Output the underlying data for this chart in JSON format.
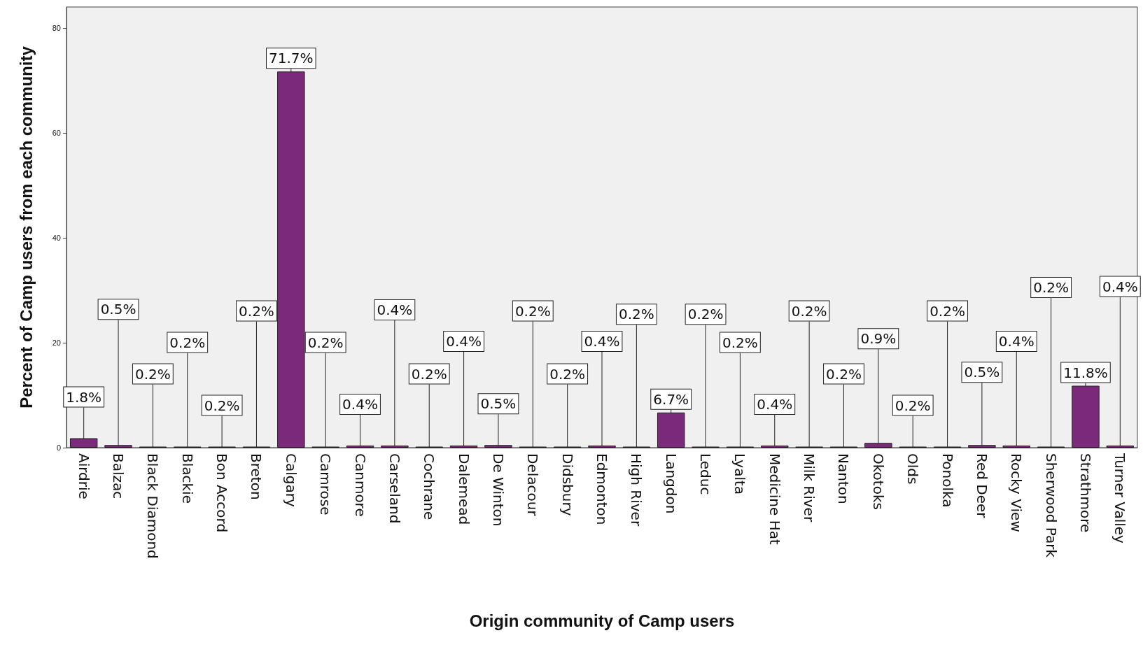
{
  "chart_data": {
    "type": "bar",
    "xlabel": "Origin community of Camp users",
    "ylabel": "Percent of Camp users from each community",
    "categories": [
      "Airdrie",
      "Balzac",
      "Black Diamond",
      "Blackie",
      "Bon Accord",
      "Breton",
      "Calgary",
      "Camrose",
      "Canmore",
      "Carseland",
      "Cochrane",
      "Dalemead",
      "De Winton",
      "Delacour",
      "Didsbury",
      "Edmonton",
      "High River",
      "Langdon",
      "Leduc",
      "Lyalta",
      "Medicine Hat",
      "Milk River",
      "Nanton",
      "Okotoks",
      "Olds",
      "Ponolka",
      "Red Deer",
      "Rocky View",
      "Sherwood Park",
      "Strathmore",
      "Turner Valley"
    ],
    "values": [
      1.8,
      0.5,
      0.2,
      0.2,
      0.2,
      0.2,
      71.7,
      0.2,
      0.4,
      0.4,
      0.2,
      0.4,
      0.5,
      0.2,
      0.2,
      0.4,
      0.2,
      6.7,
      0.2,
      0.2,
      0.4,
      0.2,
      0.2,
      0.9,
      0.2,
      0.2,
      0.5,
      0.4,
      0.2,
      11.8,
      0.4
    ],
    "value_labels": [
      "1.8%",
      "0.5%",
      "0.2%",
      "0.2%",
      "0.2%",
      "0.2%",
      "71.7%",
      "0.2%",
      "0.4%",
      "0.4%",
      "0.2%",
      "0.4%",
      "0.5%",
      "0.2%",
      "0.2%",
      "0.4%",
      "0.2%",
      "6.7%",
      "0.2%",
      "0.2%",
      "0.4%",
      "0.2%",
      "0.2%",
      "0.9%",
      "0.2%",
      "0.2%",
      "0.5%",
      "0.4%",
      "0.2%",
      "11.8%",
      "0.4%"
    ],
    "color": "#7b2a7b",
    "ylim": [
      0,
      84
    ],
    "yticks": [
      0,
      20,
      40,
      60,
      80
    ],
    "grid": false
  }
}
